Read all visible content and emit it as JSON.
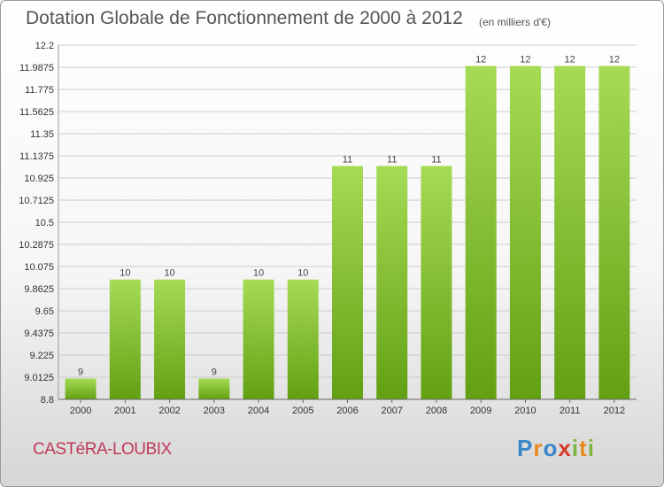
{
  "header": {
    "title": "Dotation Globale de Fonctionnement de 2000 à 2012",
    "unit": "(en milliers d'€)"
  },
  "footer": {
    "commune": "CASTéRA-LOUBIX",
    "brand_letters": [
      "P",
      "r",
      "o",
      "x",
      "i",
      "t",
      "i"
    ],
    "brand_colors": [
      "#3a86c8",
      "#e8891d",
      "#3a86c8",
      "#d63a2a",
      "#7ab640",
      "#e8891d",
      "#7ab640"
    ]
  },
  "colors": {
    "bar_light": "#a6db55",
    "bar_dark": "#62a013",
    "grid": "#cccccc"
  },
  "chart_data": {
    "type": "bar",
    "title": "Dotation Globale de Fonctionnement de 2000 à 2012",
    "subtitle": "(en milliers d'€)",
    "xlabel": "",
    "ylabel": "",
    "categories": [
      "2000",
      "2001",
      "2002",
      "2003",
      "2004",
      "2005",
      "2006",
      "2007",
      "2008",
      "2009",
      "2010",
      "2011",
      "2012"
    ],
    "values": [
      9,
      10,
      10,
      9,
      10,
      10,
      11,
      11,
      11,
      12,
      12,
      12,
      12
    ],
    "value_labels": [
      "9",
      "10",
      "10",
      "9",
      "10",
      "10",
      "11",
      "11",
      "11",
      "12",
      "12",
      "12",
      "12"
    ],
    "display_values": [
      9.0,
      9.95,
      9.95,
      9.0,
      9.95,
      9.95,
      11.04,
      11.04,
      11.04,
      12.0,
      12.0,
      12.0,
      12.0
    ],
    "ylim": [
      8.8,
      12.2
    ],
    "yticks": [
      8.8,
      9.0125,
      9.225,
      9.4375,
      9.65,
      9.8625,
      10.075,
      10.2875,
      10.5,
      10.7125,
      10.925,
      11.1375,
      11.35,
      11.5625,
      11.775,
      11.9875,
      12.2
    ],
    "ytick_labels": [
      "8.8",
      "9.0125",
      "9.225",
      "9.4375",
      "9.65",
      "9.8625",
      "10.075",
      "10.2875",
      "10.5",
      "10.7125",
      "10.925",
      "11.1375",
      "11.35",
      "11.5625",
      "11.775",
      "11.9875",
      "12.2"
    ],
    "grid": true
  }
}
